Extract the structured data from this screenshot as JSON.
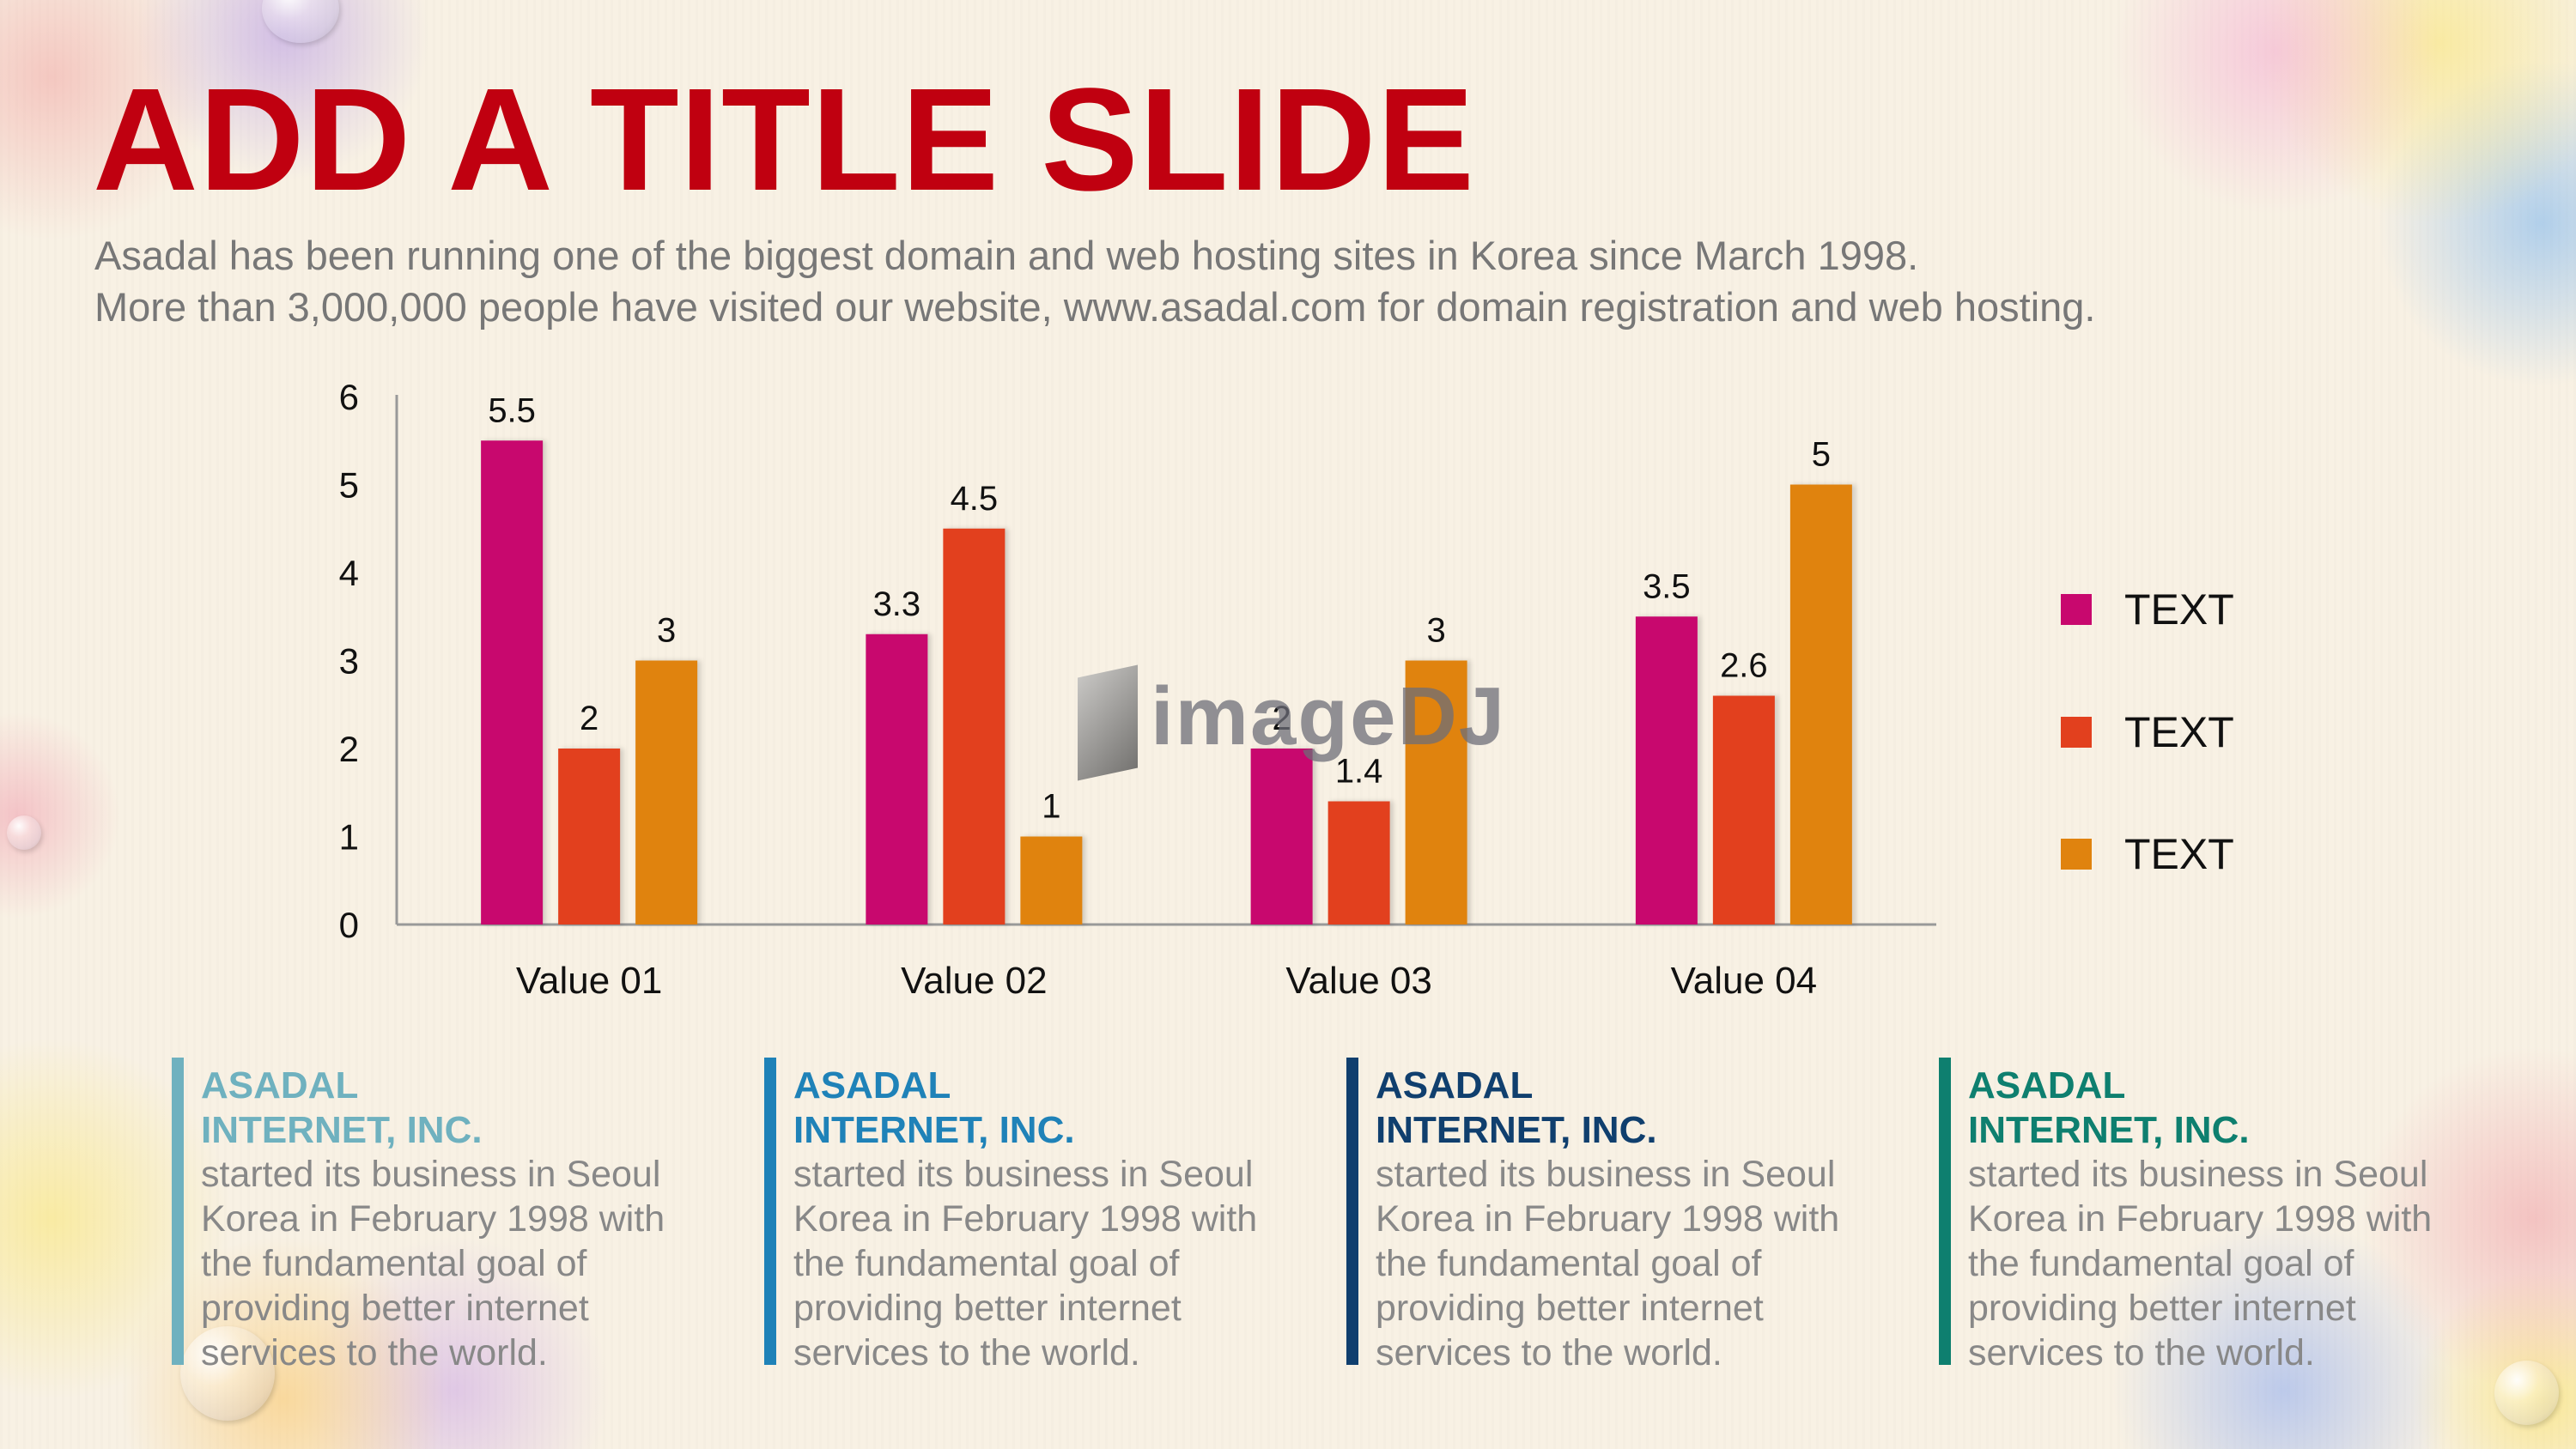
{
  "slide": {
    "title": "ADD A TITLE SLIDE",
    "subtitle_lines": [
      "Asadal has been running one of the biggest domain and web hosting sites in Korea since March 1998.",
      "More than 3,000,000 people have visited our website, www.asadal.com for domain registration and web hosting."
    ]
  },
  "watermark": "imageDJ",
  "colors": {
    "title": "#c00010",
    "series": [
      "#c8086e",
      "#e2401e",
      "#e0830e"
    ]
  },
  "chart_data": {
    "type": "bar",
    "categories": [
      "Value 01",
      "Value 02",
      "Value 03",
      "Value 04"
    ],
    "series": [
      {
        "name": "TEXT",
        "values": [
          5.5,
          3.3,
          2,
          3.5
        ]
      },
      {
        "name": "TEXT",
        "values": [
          2,
          4.5,
          1.4,
          2.6
        ]
      },
      {
        "name": "TEXT",
        "values": [
          3,
          1,
          3,
          5
        ]
      }
    ],
    "yticks": [
      0,
      1,
      2,
      3,
      4,
      5,
      6
    ],
    "ylim": [
      0,
      6
    ],
    "data_labels": true,
    "legend_position": "right",
    "grid": false
  },
  "cards": [
    {
      "title_line1": "ASADAL",
      "title_line2": "INTERNET, INC.",
      "body": "started its business in Seoul\nKorea  in February 1998 with\nthe fundamental goal of\nproviding better internet\nservices to the world.",
      "accent": "#6fb1bf"
    },
    {
      "title_line1": "ASADAL",
      "title_line2": "INTERNET, INC.",
      "body": "started its business in Seoul\nKorea  in February 1998 with\nthe fundamental goal of\nproviding better internet\nservices to the world.",
      "accent": "#1f82b8"
    },
    {
      "title_line1": "ASADAL",
      "title_line2": "INTERNET, INC.",
      "body": "started its business in Seoul\nKorea  in February 1998 with\nthe fundamental goal of\nproviding better internet\nservices to the world.",
      "accent": "#103f6e"
    },
    {
      "title_line1": "ASADAL",
      "title_line2": "INTERNET, INC.",
      "body": "started its business in Seoul\nKorea  in February 1998 with\nthe fundamental goal of\nproviding better internet\nservices to the world.",
      "accent": "#0e7f6f"
    }
  ]
}
